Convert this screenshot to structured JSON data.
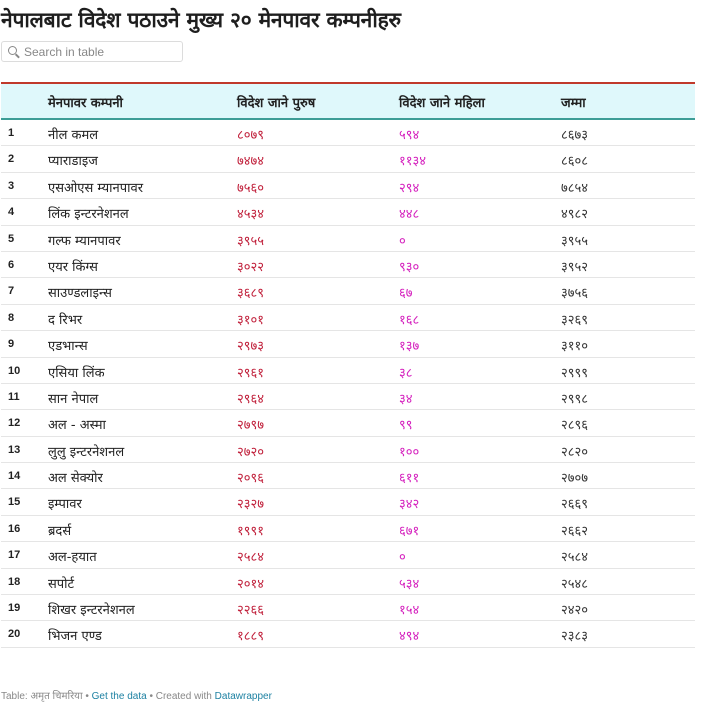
{
  "title": "नेपालबाट विदेश पठाउने मुख्य २० मेनपावर कम्पनीहरु",
  "search": {
    "placeholder": "Search in table"
  },
  "columns": [
    "मेनपावर कम्पनी",
    "विदेश जाने पुरुष",
    "विदेश जाने महिला",
    "जम्मा"
  ],
  "rows": [
    {
      "rank": "1",
      "company": "नील कमल",
      "male": "८०७९",
      "female": "५९४",
      "total": "८६७३"
    },
    {
      "rank": "2",
      "company": "प्याराडाइज",
      "male": "७४७४",
      "female": "११३४",
      "total": "८६०८"
    },
    {
      "rank": "3",
      "company": "एसओएस म्यानपावर",
      "male": "७५६०",
      "female": "२९४",
      "total": "७८५४"
    },
    {
      "rank": "4",
      "company": "लिंक इन्टरनेशनल",
      "male": "४५३४",
      "female": "४४८",
      "total": "४९८२"
    },
    {
      "rank": "5",
      "company": "गल्फ म्यानपावर",
      "male": "३९५५",
      "female": "०",
      "total": "३९५५"
    },
    {
      "rank": "6",
      "company": "एयर किंग्स",
      "male": "३०२२",
      "female": "९३०",
      "total": "३९५२"
    },
    {
      "rank": "7",
      "company": "साउण्डलाइन्स",
      "male": "३६८९",
      "female": "६७",
      "total": "३७५६"
    },
    {
      "rank": "8",
      "company": "द रिभर",
      "male": "३१०१",
      "female": "१६८",
      "total": "३२६९"
    },
    {
      "rank": "9",
      "company": "एडभान्स",
      "male": "२९७३",
      "female": "१३७",
      "total": "३११०"
    },
    {
      "rank": "10",
      "company": "एसिया लिंक",
      "male": "२९६१",
      "female": "३८",
      "total": "२९९९"
    },
    {
      "rank": "11",
      "company": "सान नेपाल",
      "male": "२९६४",
      "female": "३४",
      "total": "२९९८"
    },
    {
      "rank": "12",
      "company": "अल - अस्मा",
      "male": "२७९७",
      "female": "९९",
      "total": "२८९६"
    },
    {
      "rank": "13",
      "company": "लुलु इन्टरनेशनल",
      "male": "२७२०",
      "female": "१००",
      "total": "२८२०"
    },
    {
      "rank": "14",
      "company": "अल सेक्योर",
      "male": "२०९६",
      "female": "६११",
      "total": "२७०७"
    },
    {
      "rank": "15",
      "company": "इम्पावर",
      "male": "२३२७",
      "female": "३४२",
      "total": "२६६९"
    },
    {
      "rank": "16",
      "company": "ब्रदर्स",
      "male": "१९९१",
      "female": "६७१",
      "total": "२६६२"
    },
    {
      "rank": "17",
      "company": "अल-हयात",
      "male": "२५८४",
      "female": "०",
      "total": "२५८४"
    },
    {
      "rank": "18",
      "company": "सपोर्ट",
      "male": "२०१४",
      "female": "५३४",
      "total": "२५४८"
    },
    {
      "rank": "19",
      "company": "शिखर इन्टरनेशनल",
      "male": "२२६६",
      "female": "१५४",
      "total": "२४२०"
    },
    {
      "rank": "20",
      "company": "भिजन एण्ड",
      "male": "१८८९",
      "female": "४९४",
      "total": "२३८३"
    }
  ],
  "footer": {
    "source": "Table: अमृत चिमरिया",
    "sep1": " • ",
    "get_data": "Get the data",
    "created": " • Created with ",
    "datawrapper": "Datawrapper"
  }
}
